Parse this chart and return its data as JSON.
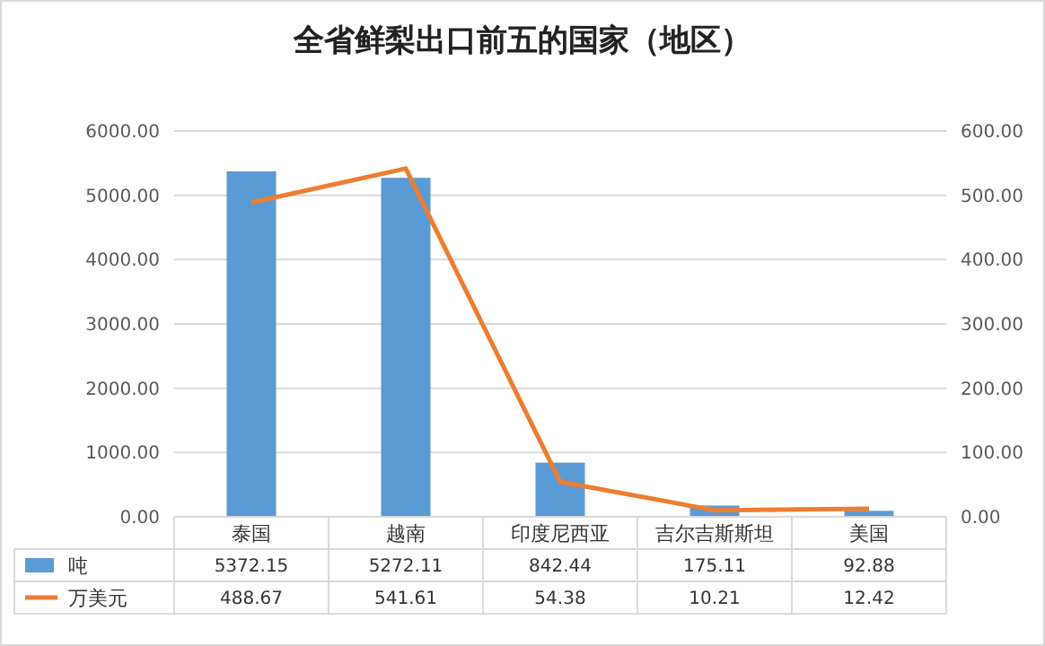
{
  "chart_data": {
    "type": "bar",
    "title": "全省鲜梨出口前五的国家（地区）",
    "categories": [
      "泰国",
      "越南",
      "印度尼西亚",
      "吉尔吉斯斯坦",
      "美国"
    ],
    "series": [
      {
        "name": "吨",
        "color": "#5b9bd5",
        "values": [
          5372.15,
          5272.11,
          842.44,
          175.11,
          92.88
        ]
      },
      {
        "name": "万美元",
        "type": "line",
        "axis": "y2",
        "color": "#ed7d31",
        "values": [
          488.67,
          541.61,
          54.38,
          10.21,
          12.42
        ]
      }
    ],
    "ylim": [
      0,
      6000
    ],
    "yticks": [
      {
        "value": 0,
        "label": "0.00"
      },
      {
        "value": 1000,
        "label": "1000.00"
      },
      {
        "value": 2000,
        "label": "2000.00"
      },
      {
        "value": 3000,
        "label": "3000.00"
      },
      {
        "value": 4000,
        "label": "4000.00"
      },
      {
        "value": 5000,
        "label": "5000.00"
      },
      {
        "value": 6000,
        "label": "6000.00"
      }
    ],
    "y2lim": [
      0,
      600
    ],
    "y2ticks": [
      {
        "value": 0,
        "label": "0.00"
      },
      {
        "value": 100,
        "label": "100.00"
      },
      {
        "value": 200,
        "label": "200.00"
      },
      {
        "value": 300,
        "label": "300.00"
      },
      {
        "value": 400,
        "label": "400.00"
      },
      {
        "value": 500,
        "label": "500.00"
      },
      {
        "value": 600,
        "label": "600.00"
      }
    ],
    "grid": "y",
    "data_labels": true,
    "legend": "bottom",
    "marker": "none",
    "line_style": "solid"
  }
}
